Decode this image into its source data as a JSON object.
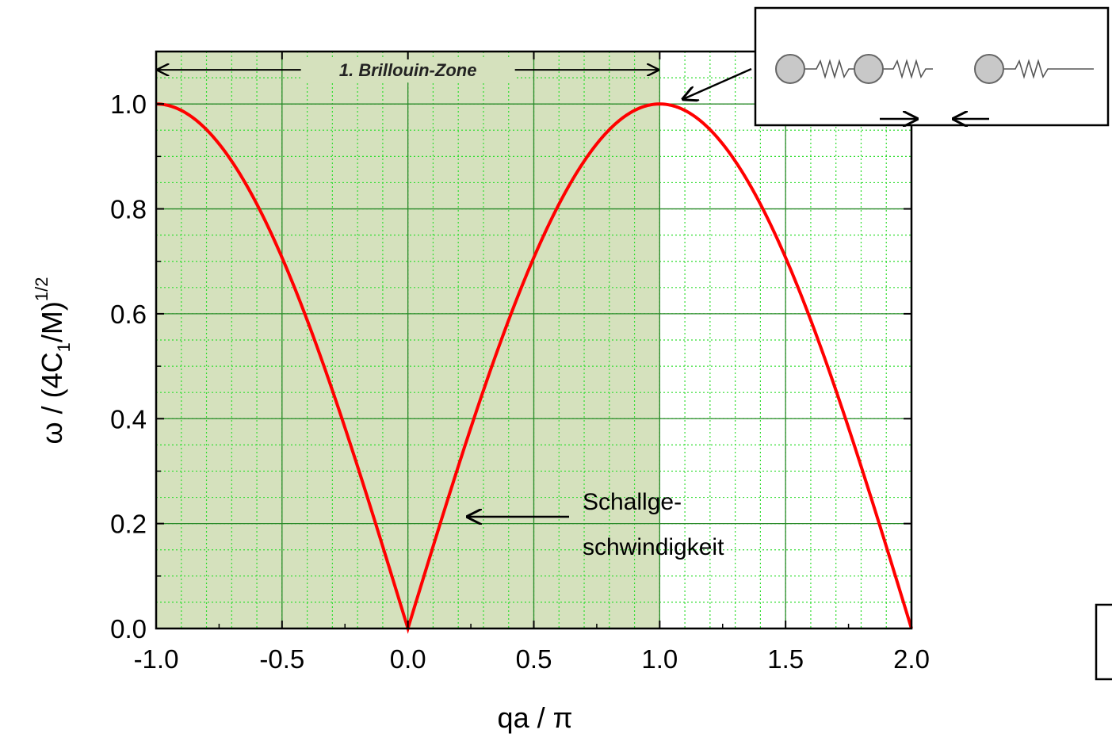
{
  "chart_data": {
    "type": "line",
    "title": "",
    "xlabel": "qa / π",
    "ylabel": "ω / (4C₁/M)^1/2",
    "ylabel_parts": {
      "omega": "ω",
      "mid": " / (4C",
      "sub": "1",
      "after": "/M)",
      "sup": "1/2"
    },
    "xlim": [
      -1.0,
      2.0
    ],
    "ylim": [
      0.0,
      1.1
    ],
    "xticks": [
      -1.0,
      -0.5,
      0.0,
      0.5,
      1.0,
      1.5,
      2.0
    ],
    "xtick_labels": [
      "-1.0",
      "-0.5",
      "0.0",
      "0.5",
      "1.0",
      "1.5",
      "2.0"
    ],
    "yticks": [
      0.0,
      0.2,
      0.4,
      0.6,
      0.8,
      1.0
    ],
    "ytick_labels": [
      "0.0",
      "0.2",
      "0.4",
      "0.6",
      "0.8",
      "1.0"
    ],
    "grid": true,
    "shaded_region": {
      "x": [
        -1.0,
        1.0
      ],
      "label": "1. Brillouin-Zone",
      "color": "#d5e1bd"
    },
    "series": [
      {
        "color": "#ff0000",
        "formula": "|sin(π·x/2)|",
        "x": [
          -1.0,
          -0.9,
          -0.8,
          -0.7,
          -0.6,
          -0.5,
          -0.4,
          -0.3,
          -0.2,
          -0.1,
          0.0,
          0.1,
          0.2,
          0.3,
          0.4,
          0.5,
          0.6,
          0.7,
          0.8,
          0.9,
          1.0,
          1.1,
          1.2,
          1.3,
          1.4,
          1.5,
          1.6,
          1.7,
          1.8,
          1.9,
          2.0
        ],
        "y": [
          1.0,
          0.988,
          0.951,
          0.891,
          0.809,
          0.707,
          0.588,
          0.454,
          0.309,
          0.156,
          0.0,
          0.156,
          0.309,
          0.454,
          0.588,
          0.707,
          0.809,
          0.891,
          0.951,
          0.988,
          1.0,
          0.988,
          0.951,
          0.891,
          0.809,
          0.707,
          0.588,
          0.454,
          0.309,
          0.156,
          0.0
        ]
      }
    ],
    "annotations": [
      {
        "text_lines": [
          "Schallge-",
          "schwindigkeit"
        ],
        "points_to": [
          0.22,
          0.21
        ]
      }
    ]
  },
  "colors": {
    "curve": "#ff0000",
    "grid_major": "#2a8a2a",
    "grid_minor": "#33dd33",
    "zone_fill": "#d5e1bd"
  },
  "inset": {
    "content": "chain of masses connected by springs",
    "icon": "spring-mass-chain"
  }
}
